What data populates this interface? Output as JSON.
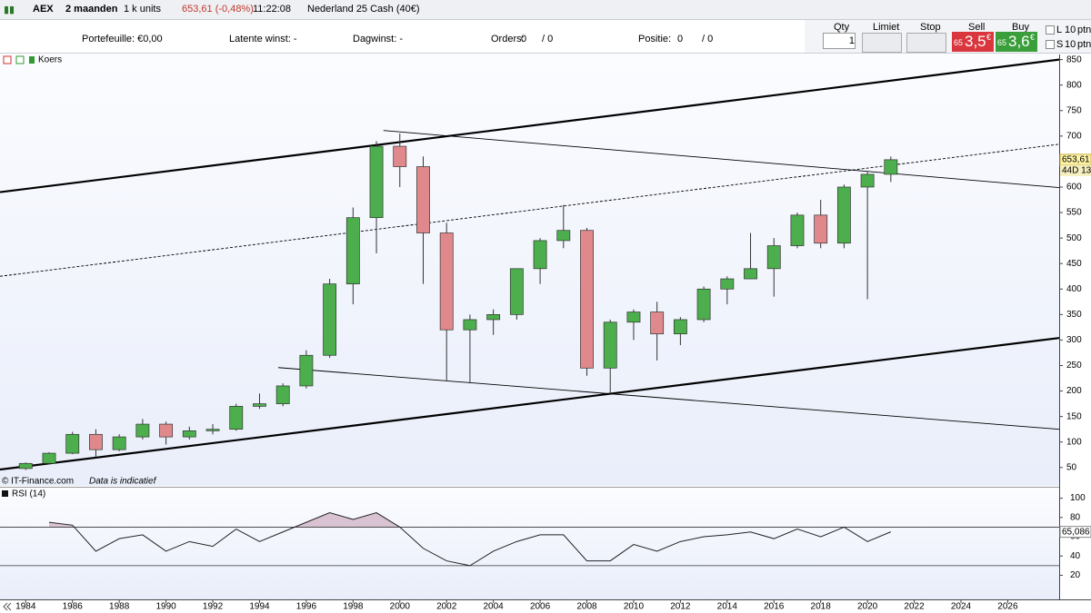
{
  "toolbar": {
    "symbol": "AEX",
    "period": "2 maanden",
    "units": "1 k units",
    "quote": "653,61 (-0,48%)",
    "time": "11:22:08",
    "instrument": "Nederland 25 Cash (40€)"
  },
  "info_bar": {
    "portfolio": "Portefeuille: €0,00",
    "latent": "Latente winst: -",
    "day": "Dagwinst: -",
    "orders": "Orders:",
    "orders_a": "0",
    "orders_b": "/ 0",
    "position": "Positie:",
    "position_a": "0",
    "position_b": "/ 0"
  },
  "order_panel": {
    "qty": "Qty",
    "qty_value": "1",
    "limit": "Limiet",
    "stop": "Stop",
    "sell": "Sell",
    "buy": "Buy",
    "sell_small": "65",
    "sell_big": "3,5",
    "sell_unit": "€",
    "buy_small": "65",
    "buy_big": "3,6",
    "buy_unit": "€",
    "long": "L",
    "long_value": "10",
    "long_unit": "ptn",
    "short": "S",
    "short_value": "10",
    "short_unit": "ptn"
  },
  "chart_panel": {
    "legend": "Koers",
    "source": "© IT-Finance.com",
    "disclaimer": "Data is indicatief"
  },
  "chart_data": [
    {
      "type": "candlestick",
      "grid": false,
      "up_color": "#4cae4c",
      "down_color": "#e0898c",
      "x": [
        1984,
        1985,
        1986,
        1987,
        1988,
        1989,
        1990,
        1991,
        1992,
        1993,
        1994,
        1995,
        1996,
        1997,
        1998,
        1999,
        2000,
        2001,
        2002,
        2003,
        2004,
        2005,
        2006,
        2007,
        2008,
        2009,
        2010,
        2011,
        2012,
        2013,
        2014,
        2015,
        2016,
        2017,
        2018,
        2019,
        2020,
        2021
      ],
      "open": [
        48,
        58,
        78,
        115,
        85,
        110,
        135,
        110,
        122,
        125,
        170,
        175,
        210,
        270,
        410,
        540,
        680,
        640,
        510,
        320,
        340,
        350,
        440,
        495,
        515,
        245,
        335,
        355,
        312,
        340,
        400,
        420,
        440,
        485,
        545,
        490,
        600,
        625
      ],
      "high": [
        60,
        80,
        120,
        125,
        115,
        145,
        140,
        130,
        135,
        175,
        195,
        215,
        280,
        420,
        560,
        690,
        705,
        660,
        530,
        350,
        360,
        440,
        500,
        565,
        520,
        340,
        360,
        375,
        345,
        405,
        425,
        510,
        500,
        550,
        575,
        605,
        630,
        660
      ],
      "low": [
        45,
        56,
        76,
        70,
        82,
        105,
        95,
        105,
        115,
        122,
        165,
        170,
        205,
        265,
        370,
        470,
        600,
        410,
        220,
        215,
        310,
        340,
        410,
        480,
        230,
        195,
        300,
        260,
        290,
        335,
        370,
        420,
        385,
        480,
        480,
        480,
        380,
        610
      ],
      "close": [
        58,
        78,
        115,
        85,
        110,
        135,
        110,
        122,
        125,
        170,
        175,
        210,
        270,
        410,
        540,
        680,
        640,
        510,
        320,
        340,
        350,
        440,
        495,
        515,
        245,
        335,
        355,
        312,
        340,
        400,
        420,
        440,
        485,
        545,
        490,
        600,
        625,
        653.61
      ],
      "xlim": [
        1982.9,
        2028.2
      ],
      "xticks": [
        1984,
        1986,
        1988,
        1990,
        1992,
        1994,
        1996,
        1998,
        2000,
        2002,
        2004,
        2006,
        2008,
        2010,
        2012,
        2014,
        2016,
        2018,
        2020,
        2022,
        2024,
        2026
      ],
      "ylim": [
        14,
        860
      ],
      "yticks": [
        50,
        100,
        150,
        200,
        250,
        300,
        350,
        400,
        450,
        500,
        550,
        600,
        650,
        700,
        750,
        800,
        850
      ],
      "trendlines": [
        {
          "style": "thick",
          "x": [
            1982.9,
            2028.2
          ],
          "y": [
            590,
            850
          ]
        },
        {
          "style": "thick",
          "x": [
            1982.9,
            2028.2
          ],
          "y": [
            46,
            304
          ]
        },
        {
          "style": "dashed",
          "x": [
            1982.9,
            2028.2
          ],
          "y": [
            425,
            684
          ]
        },
        {
          "style": "thin",
          "x": [
            1999.3,
            2028.2
          ],
          "y": [
            711,
            599
          ]
        },
        {
          "style": "thin",
          "x": [
            1994.8,
            2028.2
          ],
          "y": [
            246,
            125
          ]
        }
      ],
      "last_label": "653,61",
      "countdown": "44D 13u"
    },
    {
      "type": "line",
      "title": "RSI (14)",
      "color": "#222222",
      "fill_color": "#d9c3d3",
      "x": [
        1984,
        1985,
        1986,
        1987,
        1988,
        1989,
        1990,
        1991,
        1992,
        1993,
        1994,
        1995,
        1996,
        1997,
        1998,
        1999,
        2000,
        2001,
        2002,
        2003,
        2004,
        2005,
        2006,
        2007,
        2008,
        2009,
        2010,
        2011,
        2012,
        2013,
        2014,
        2015,
        2016,
        2017,
        2018,
        2019,
        2020,
        2021
      ],
      "values": [
        null,
        75,
        72,
        45,
        58,
        62,
        45,
        55,
        50,
        68,
        55,
        65,
        75,
        85,
        78,
        85,
        70,
        48,
        35,
        30,
        45,
        55,
        62,
        62,
        35,
        35,
        52,
        45,
        55,
        60,
        62,
        65,
        58,
        68,
        60,
        70,
        55,
        65.086
      ],
      "xlim": [
        1982.9,
        2028.2
      ],
      "ylim": [
        -5,
        110
      ],
      "yticks": [
        20,
        40,
        60,
        80,
        100
      ],
      "levels": [
        30,
        70
      ],
      "last_label": "65,086"
    }
  ]
}
